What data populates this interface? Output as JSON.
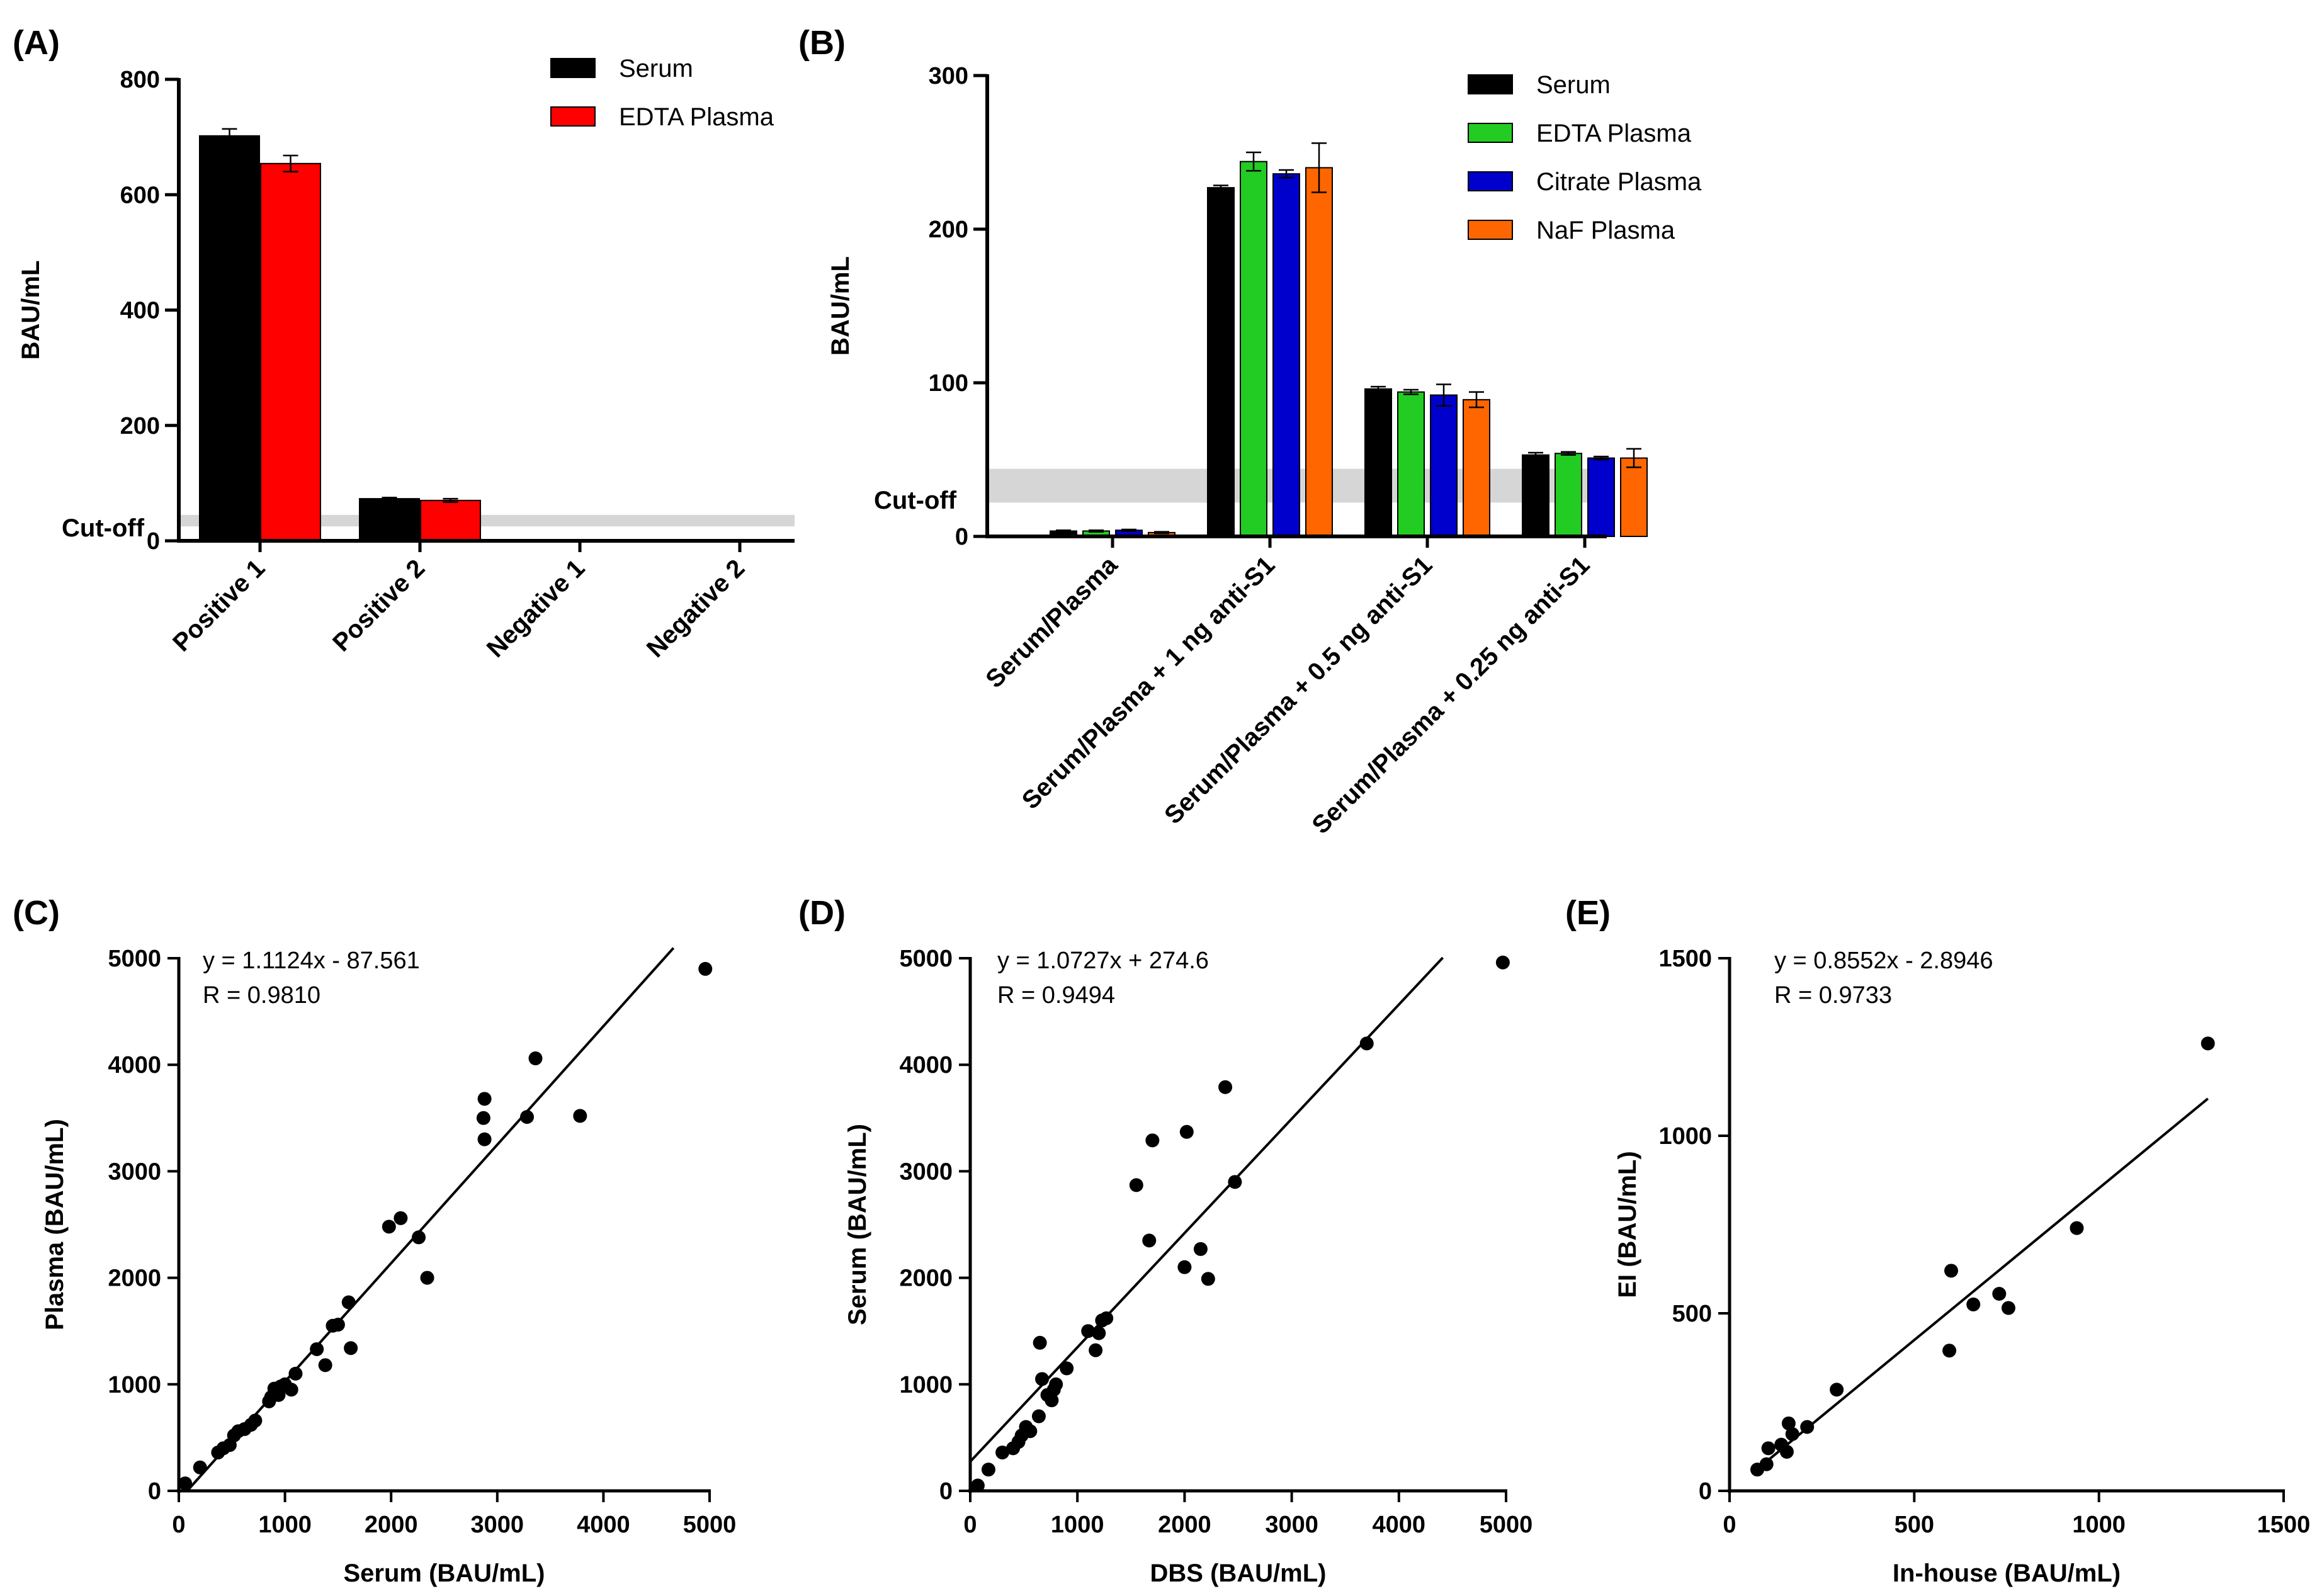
{
  "chart_data": [
    {
      "panel": "(A)",
      "type": "bar",
      "ylabel": "BAU/mL",
      "ylim": [
        0,
        800
      ],
      "yticks": [
        0,
        200,
        400,
        600,
        800
      ],
      "categories": [
        "Positive 1",
        "Positive 2",
        "Negative 1",
        "Negative 2"
      ],
      "series": [
        {
          "name": "Serum",
          "color": "#000000",
          "values": [
            702,
            73,
            0,
            0
          ],
          "errors": [
            12,
            2,
            0,
            0
          ]
        },
        {
          "name": "EDTA Plasma",
          "color": "#ff0000",
          "values": [
            654,
            70,
            0,
            0
          ],
          "errors": [
            14,
            3,
            0,
            0
          ]
        }
      ],
      "cutoff": {
        "label": "Cut-off",
        "from": 25,
        "to": 45
      },
      "legend": "top-right"
    },
    {
      "panel": "(B)",
      "type": "bar",
      "ylabel": "BAU/mL",
      "ylim": [
        0,
        300
      ],
      "yticks": [
        0,
        100,
        200,
        300
      ],
      "categories": [
        "Serum/Plasma",
        "Serum/Plasma + 1 ng anti-S1",
        "Serum/Plasma +  0.5 ng anti-S1",
        "Serum/Plasma + 0.25 ng anti-S1"
      ],
      "series": [
        {
          "name": "Serum",
          "color": "#000000",
          "values": [
            3.5,
            227,
            96,
            53
          ],
          "errors": [
            0.5,
            1.5,
            1.5,
            1.5
          ]
        },
        {
          "name": "EDTA Plasma",
          "color": "#22cc22",
          "values": [
            3.5,
            244,
            94,
            54
          ],
          "errors": [
            0.5,
            6,
            1.5,
            1
          ]
        },
        {
          "name": "Citrate Plasma",
          "color": "#0000cc",
          "values": [
            4,
            236,
            92,
            51
          ],
          "errors": [
            0.5,
            2.5,
            7,
            1
          ]
        },
        {
          "name": "NaF Plasma",
          "color": "#ff6600",
          "values": [
            2.5,
            240,
            89,
            51
          ],
          "errors": [
            0.5,
            16,
            5,
            6
          ]
        }
      ],
      "cutoff": {
        "label": "Cut-off",
        "from": 22,
        "to": 44
      },
      "legend": "top-right"
    },
    {
      "panel": "(C)",
      "type": "scatter",
      "xlabel": "Serum (BAU/mL)",
      "ylabel": "Plasma (BAU/mL)",
      "xlim": [
        0,
        5000
      ],
      "ylim": [
        0,
        5000
      ],
      "xticks": [
        0,
        1000,
        2000,
        3000,
        4000,
        5000
      ],
      "yticks": [
        0,
        1000,
        2000,
        3000,
        4000,
        5000
      ],
      "equation": "y = 1.1124x - 87.561",
      "r_text": "R = 0.9810",
      "fit": {
        "slope": 1.1124,
        "intercept": -87.561,
        "x_from": 80,
        "x_to": 4660
      },
      "points": [
        [
          60,
          70
        ],
        [
          200,
          220
        ],
        [
          370,
          360
        ],
        [
          420,
          400
        ],
        [
          480,
          430
        ],
        [
          520,
          520
        ],
        [
          560,
          560
        ],
        [
          620,
          580
        ],
        [
          680,
          620
        ],
        [
          720,
          660
        ],
        [
          850,
          840
        ],
        [
          870,
          880
        ],
        [
          900,
          960
        ],
        [
          940,
          900
        ],
        [
          960,
          980
        ],
        [
          1000,
          1000
        ],
        [
          1060,
          950
        ],
        [
          1100,
          1100
        ],
        [
          1300,
          1330
        ],
        [
          1380,
          1180
        ],
        [
          1450,
          1550
        ],
        [
          1500,
          1560
        ],
        [
          1600,
          1770
        ],
        [
          1620,
          1340
        ],
        [
          1980,
          2480
        ],
        [
          2090,
          2560
        ],
        [
          2260,
          2380
        ],
        [
          2340,
          2000
        ],
        [
          2880,
          3680
        ],
        [
          2870,
          3500
        ],
        [
          2880,
          3300
        ],
        [
          3280,
          3510
        ],
        [
          3360,
          4060
        ],
        [
          3780,
          3520
        ],
        [
          4960,
          4900
        ]
      ]
    },
    {
      "panel": "(D)",
      "type": "scatter",
      "xlabel": "DBS (BAU/mL)",
      "ylabel": "Serum (BAU/mL)",
      "xlim": [
        0,
        5000
      ],
      "ylim": [
        0,
        5000
      ],
      "xticks": [
        0,
        1000,
        2000,
        3000,
        4000,
        5000
      ],
      "yticks": [
        0,
        1000,
        2000,
        3000,
        4000,
        5000
      ],
      "equation": "y = 1.0727x + 274.6",
      "r_text": "R = 0.9494",
      "fit": {
        "slope": 1.0727,
        "intercept": 274.6,
        "x_from": 0,
        "x_to": 4410
      },
      "points": [
        [
          70,
          50
        ],
        [
          170,
          200
        ],
        [
          300,
          360
        ],
        [
          400,
          400
        ],
        [
          450,
          460
        ],
        [
          480,
          520
        ],
        [
          520,
          600
        ],
        [
          560,
          560
        ],
        [
          640,
          700
        ],
        [
          650,
          1390
        ],
        [
          670,
          1050
        ],
        [
          720,
          900
        ],
        [
          760,
          850
        ],
        [
          780,
          950
        ],
        [
          800,
          1000
        ],
        [
          900,
          1150
        ],
        [
          1100,
          1500
        ],
        [
          1170,
          1320
        ],
        [
          1200,
          1480
        ],
        [
          1230,
          1600
        ],
        [
          1270,
          1620
        ],
        [
          1550,
          2870
        ],
        [
          1670,
          2350
        ],
        [
          1700,
          3290
        ],
        [
          2000,
          2100
        ],
        [
          2020,
          3370
        ],
        [
          2150,
          2270
        ],
        [
          2220,
          1990
        ],
        [
          2380,
          3790
        ],
        [
          2470,
          2900
        ],
        [
          3700,
          4200
        ],
        [
          4970,
          4960
        ]
      ]
    },
    {
      "panel": "(E)",
      "type": "scatter",
      "xlabel": "In-house (BAU/mL)",
      "ylabel": "EI (BAU/mL)",
      "xlim": [
        0,
        1500
      ],
      "ylim": [
        0,
        1500
      ],
      "xticks": [
        0,
        500,
        1000,
        1500
      ],
      "yticks": [
        0,
        500,
        1000,
        1500
      ],
      "equation": "y = 0.8552x - 2.8946",
      "r_text": "R = 0.9733",
      "fit": {
        "slope": 0.8552,
        "intercept": -2.8946,
        "x_from": 70,
        "x_to": 1295
      },
      "points": [
        [
          75,
          60
        ],
        [
          100,
          75
        ],
        [
          105,
          120
        ],
        [
          140,
          130
        ],
        [
          155,
          110
        ],
        [
          160,
          190
        ],
        [
          170,
          160
        ],
        [
          210,
          180
        ],
        [
          290,
          285
        ],
        [
          595,
          395
        ],
        [
          600,
          620
        ],
        [
          660,
          525
        ],
        [
          730,
          555
        ],
        [
          755,
          515
        ],
        [
          940,
          740
        ],
        [
          1295,
          1260
        ]
      ]
    }
  ]
}
